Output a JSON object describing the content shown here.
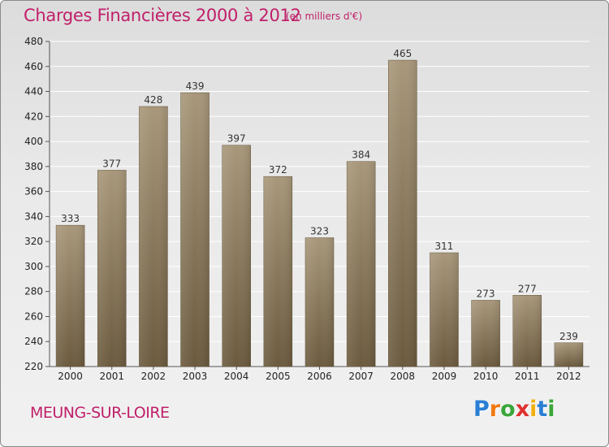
{
  "header": {
    "title": "Charges Financières 2000 à 2012",
    "subtitle": "(en milliers d'€)"
  },
  "footer": {
    "city": "MEUNG-SUR-LOIRE",
    "logo_letters": [
      "P",
      "r",
      "o",
      "x",
      "i",
      "t",
      "i"
    ],
    "logo_colors": [
      "#2a7fd4",
      "#f07a12",
      "#3aa63a",
      "#e03030",
      "#f0b010",
      "#2a7fd4",
      "#3aa63a"
    ]
  },
  "colors": {
    "title": "#c0206a",
    "bar_top": "#a8977a",
    "bar_bottom": "#6b5a3e",
    "grid": "#ffffff"
  },
  "chart_data": {
    "type": "bar",
    "title": "Charges Financières 2000 à 2012",
    "subtitle": "(en milliers d'€)",
    "categories": [
      "2000",
      "2001",
      "2002",
      "2003",
      "2004",
      "2005",
      "2006",
      "2007",
      "2008",
      "2009",
      "2010",
      "2011",
      "2012"
    ],
    "values": [
      333,
      377,
      428,
      439,
      397,
      372,
      323,
      384,
      465,
      311,
      273,
      277,
      239
    ],
    "ylim": [
      220,
      480
    ],
    "yticks": [
      220,
      240,
      260,
      280,
      300,
      320,
      340,
      360,
      380,
      400,
      420,
      440,
      460,
      480
    ],
    "grid": "horizontal",
    "legend": "none"
  }
}
